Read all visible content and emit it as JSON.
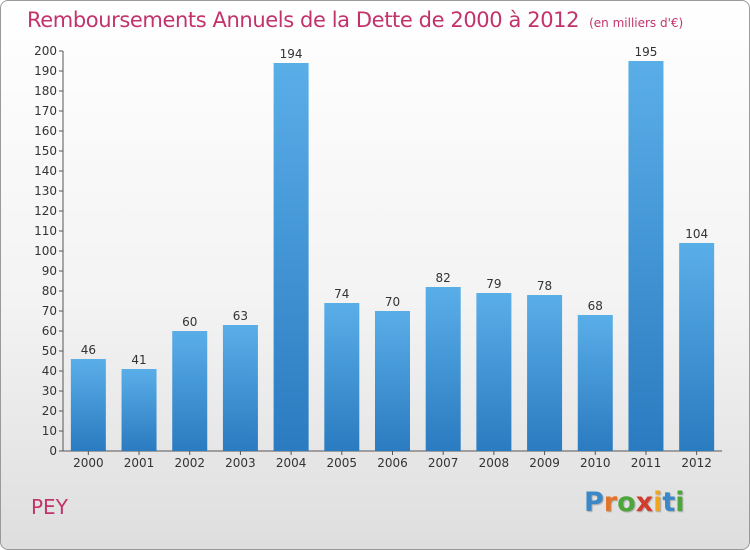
{
  "header": {
    "title": "Remboursements Annuels de la Dette de 2000 à 2012",
    "subtitle": "(en milliers d'€)"
  },
  "footer": {
    "commune": "PEY",
    "logo_letters": [
      "P",
      "r",
      "o",
      "x",
      "i",
      "t",
      "i"
    ],
    "logo_colors": [
      "#3a88c8",
      "#e2732a",
      "#4da63a",
      "#d33b2c",
      "#f0a51e",
      "#3a88c8",
      "#4da63a"
    ]
  },
  "chart_data": {
    "type": "bar",
    "title": "Remboursements Annuels de la Dette de 2000 à 2012",
    "subtitle": "(en milliers d'€)",
    "categories": [
      "2000",
      "2001",
      "2002",
      "2003",
      "2004",
      "2005",
      "2006",
      "2007",
      "2008",
      "2009",
      "2010",
      "2011",
      "2012"
    ],
    "values": [
      46,
      41,
      60,
      63,
      194,
      74,
      70,
      82,
      79,
      78,
      68,
      195,
      104
    ],
    "ylim": [
      0,
      200
    ],
    "ytick_step": 10,
    "grid": false,
    "bar_color_top": "#5aaee8",
    "bar_color_bottom": "#2a7bc0"
  }
}
